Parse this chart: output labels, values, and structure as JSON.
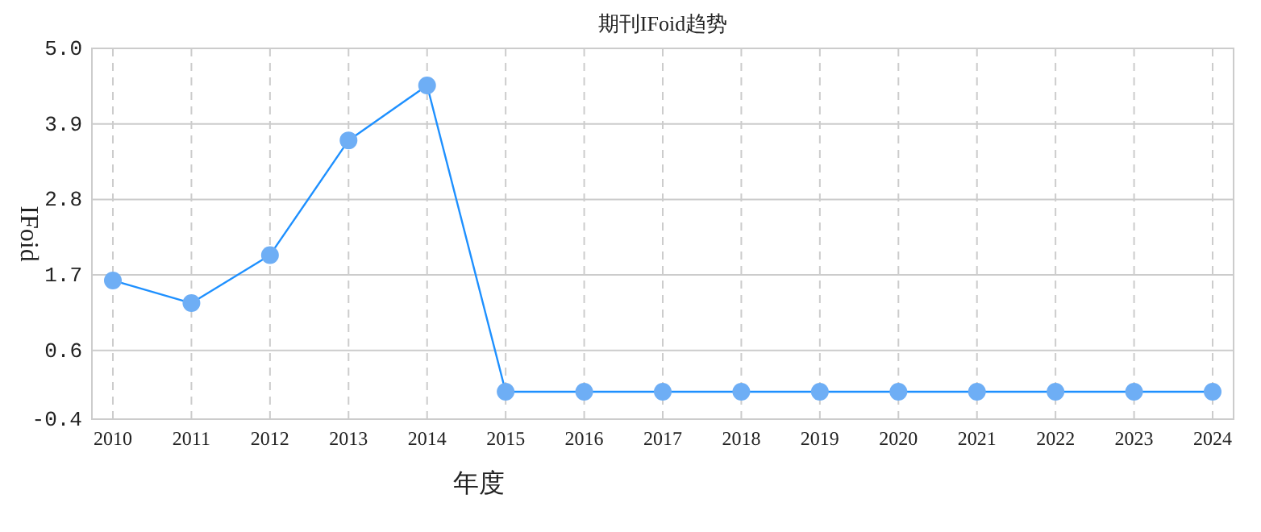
{
  "chart_data": {
    "type": "line",
    "title": "期刊IFoid趋势",
    "xlabel": "年度",
    "ylabel": "IFoid",
    "categories": [
      "2010",
      "2011",
      "2012",
      "2013",
      "2014",
      "2015",
      "2016",
      "2017",
      "2018",
      "2019",
      "2020",
      "2021",
      "2022",
      "2023",
      "2024"
    ],
    "series": [
      {
        "color": "#1e90ff",
        "values": [
          1.62,
          1.29,
          1.99,
          3.66,
          4.46,
          0,
          0,
          0,
          0,
          0,
          0,
          0,
          0,
          0,
          0
        ]
      }
    ],
    "ylim": [
      -0.4,
      5.0
    ],
    "yticks": [
      {
        "value": -0.4,
        "label": "-0.4"
      },
      {
        "value": 0.6,
        "label": "0.6"
      },
      {
        "value": 1.7,
        "label": "1.7"
      },
      {
        "value": 2.8,
        "label": "2.8"
      },
      {
        "value": 3.9,
        "label": "3.9"
      },
      {
        "value": 5.0,
        "label": "5.0"
      }
    ],
    "grid": true,
    "marker": "circle"
  }
}
